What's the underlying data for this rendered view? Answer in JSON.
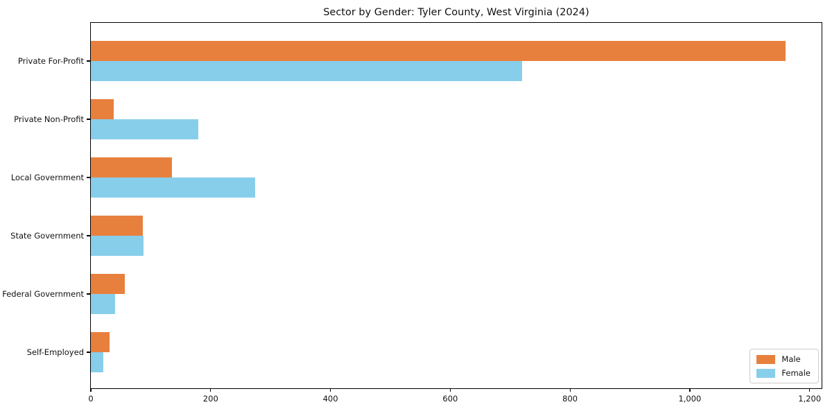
{
  "chart_data": {
    "type": "bar",
    "orientation": "horizontal",
    "title": "Sector by Gender: Tyler County, West Virginia (2024)",
    "categories": [
      "Private For-Profit",
      "Private Non-Profit",
      "Local Government",
      "State Government",
      "Federal Government",
      "Self-Employed"
    ],
    "series": [
      {
        "name": "Male",
        "color": "#e8803d",
        "values": [
          1160,
          38,
          135,
          87,
          57,
          31
        ]
      },
      {
        "name": "Female",
        "color": "#87ceeb",
        "values": [
          720,
          179,
          274,
          88,
          40,
          21
        ]
      }
    ],
    "xlabel": "",
    "ylabel": "",
    "xlim": [
      0,
      1220
    ],
    "xticks": [
      0,
      200,
      400,
      600,
      800,
      1000,
      1200
    ],
    "xtick_labels": [
      "0",
      "200",
      "400",
      "600",
      "800",
      "1,000",
      "1,200"
    ],
    "grid": false,
    "legend": {
      "position": "lower right",
      "labels": [
        "Male",
        "Female"
      ]
    }
  }
}
